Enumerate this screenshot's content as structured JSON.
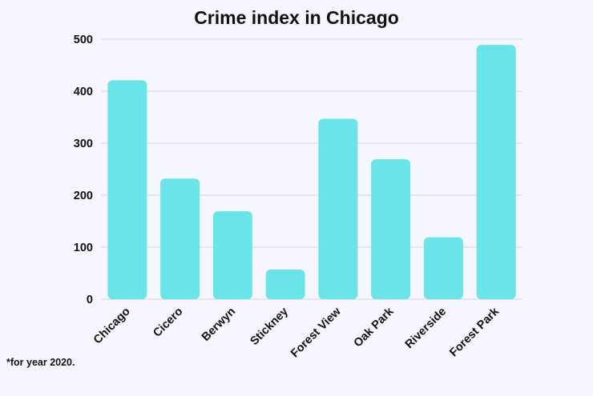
{
  "chart_data": {
    "type": "bar",
    "title": "Crime index in Chicago",
    "xlabel": "",
    "ylabel": "",
    "categories": [
      "Chicago",
      "Cicero",
      "Berwyn",
      "Stickney",
      "Forest View",
      "Oak Park",
      "Riverside",
      "Forest Park"
    ],
    "values": [
      421,
      232,
      169,
      57,
      347,
      269,
      119,
      489
    ],
    "ylim": [
      0,
      500
    ],
    "yticks": [
      0,
      100,
      200,
      300,
      400,
      500
    ],
    "grid": true,
    "bar_color": "#6ae4e8"
  },
  "footnote": "*for year 2020."
}
